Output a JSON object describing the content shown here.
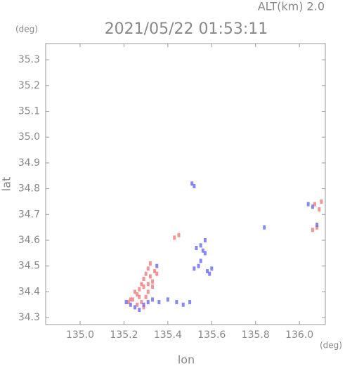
{
  "chart_data": {
    "type": "scatter",
    "title": "2021/05/22 01:53:11",
    "subtitle": "ALT(km) 2.0",
    "x_label": "lon",
    "y_label": "lat",
    "x_unit": "(deg)",
    "y_unit": "(deg)",
    "xlim": [
      134.843,
      136.118
    ],
    "ylim": [
      34.273,
      35.363
    ],
    "xticks": [
      {
        "value": 135,
        "label": "135.0"
      },
      135.2,
      135.4,
      135.6,
      135.8,
      {
        "value": 136,
        "label": "136.0"
      }
    ],
    "yticks": [
      34.3,
      34.4,
      34.5,
      34.6,
      34.7,
      34.8,
      34.9,
      {
        "value": 35,
        "label": "35.0"
      },
      35.1,
      35.2,
      35.3
    ],
    "grid": false,
    "series": [
      {
        "color": "#f07a7a",
        "x": [
          135.22,
          135.24,
          135.26,
          135.27,
          135.28,
          135.29,
          135.3,
          135.31,
          135.32,
          135.33,
          135.25,
          135.27,
          135.29,
          135.31,
          135.33,
          135.28,
          135.3,
          135.32,
          135.34,
          135.26,
          135.29,
          135.31,
          135.35,
          135.23,
          135.43,
          135.45,
          136.07,
          136.09,
          136.1,
          136.08,
          136.06
        ],
        "values": [
          34.36,
          34.37,
          34.39,
          34.41,
          34.43,
          34.45,
          34.47,
          34.49,
          34.51,
          34.44,
          34.4,
          34.38,
          34.42,
          34.4,
          34.42,
          34.36,
          34.38,
          34.46,
          34.48,
          34.35,
          34.34,
          34.43,
          34.47,
          34.37,
          34.61,
          34.62,
          34.74,
          34.72,
          34.75,
          34.65,
          34.64
        ]
      },
      {
        "color": "#6a6af0",
        "x": [
          135.25,
          135.27,
          135.29,
          135.31,
          135.33,
          135.36,
          135.4,
          135.44,
          135.47,
          135.5,
          135.52,
          135.54,
          135.55,
          135.56,
          135.57,
          135.58,
          135.59,
          135.6,
          135.55,
          135.57,
          135.53,
          135.51,
          135.52,
          135.84,
          136.04,
          136.06,
          136.08,
          135.21,
          135.23,
          135.35
        ],
        "values": [
          34.34,
          34.33,
          34.35,
          34.36,
          34.37,
          34.36,
          34.37,
          34.36,
          34.35,
          34.36,
          34.49,
          34.5,
          34.58,
          34.56,
          34.6,
          34.48,
          34.47,
          34.49,
          34.52,
          34.55,
          34.57,
          34.82,
          34.81,
          34.65,
          34.74,
          34.73,
          34.66,
          34.36,
          34.35,
          34.5
        ]
      }
    ]
  }
}
